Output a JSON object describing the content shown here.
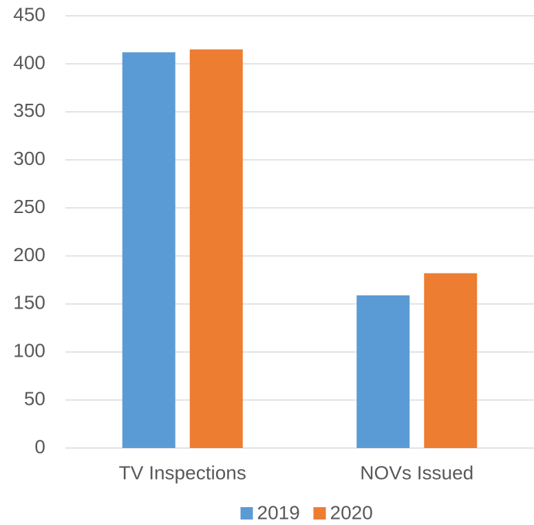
{
  "chart_data": {
    "type": "bar",
    "categories": [
      "TV Inspections",
      "NOVs Issued"
    ],
    "series": [
      {
        "name": "2019",
        "color": "#5b9bd5",
        "values": [
          412,
          159
        ]
      },
      {
        "name": "2020",
        "color": "#ed7d31",
        "values": [
          415,
          182
        ]
      }
    ],
    "ylim": [
      0,
      450
    ],
    "yticks": [
      0,
      50,
      100,
      150,
      200,
      250,
      300,
      350,
      400,
      450
    ],
    "grid": true,
    "legend": "bottom"
  }
}
